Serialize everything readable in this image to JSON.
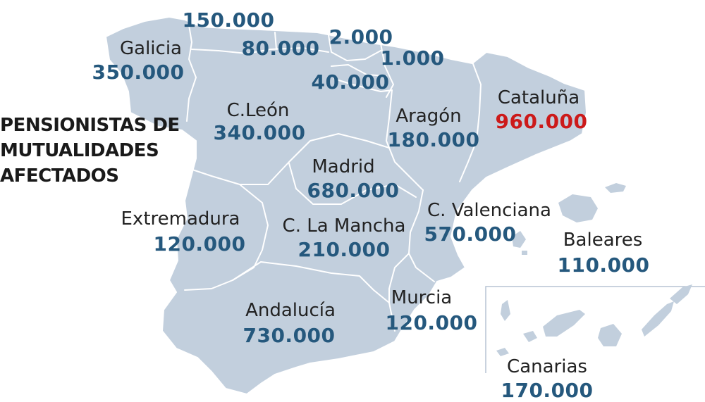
{
  "title": {
    "line1": "PENSIONISTAS DE",
    "line2": "MUTUALIDADES",
    "line3": "AFECTADOS"
  },
  "colors": {
    "land": "#c2cfdd",
    "value_default": "#25587d",
    "value_highlight": "#cc1a1a",
    "border": "#ffffff"
  },
  "regions": {
    "asturias": {
      "value": "150.000"
    },
    "cantabria": {
      "value": "80.000"
    },
    "pais_vasco": {
      "value": "2.000"
    },
    "navarra": {
      "value": "1.000"
    },
    "la_rioja": {
      "value": "40.000"
    },
    "galicia": {
      "name": "Galicia",
      "value": "350.000"
    },
    "cleon": {
      "name": "C.León",
      "value": "340.000"
    },
    "aragon": {
      "name": "Aragón",
      "value": "180.000"
    },
    "cataluna": {
      "name": "Cataluña",
      "value": "960.000"
    },
    "madrid": {
      "name": "Madrid",
      "value": "680.000"
    },
    "extremadura": {
      "name": "Extremadura",
      "value": "120.000"
    },
    "clamancha": {
      "name": "C. La Mancha",
      "value": "210.000"
    },
    "cvalenciana": {
      "name": "C. Valenciana",
      "value": "570.000"
    },
    "baleares": {
      "name": "Baleares",
      "value": "110.000"
    },
    "andalucia": {
      "name": "Andalucía",
      "value": "730.000"
    },
    "murcia": {
      "name": "Murcia",
      "value": "120.000"
    },
    "canarias": {
      "name": "Canarias",
      "value": "170.000"
    }
  }
}
